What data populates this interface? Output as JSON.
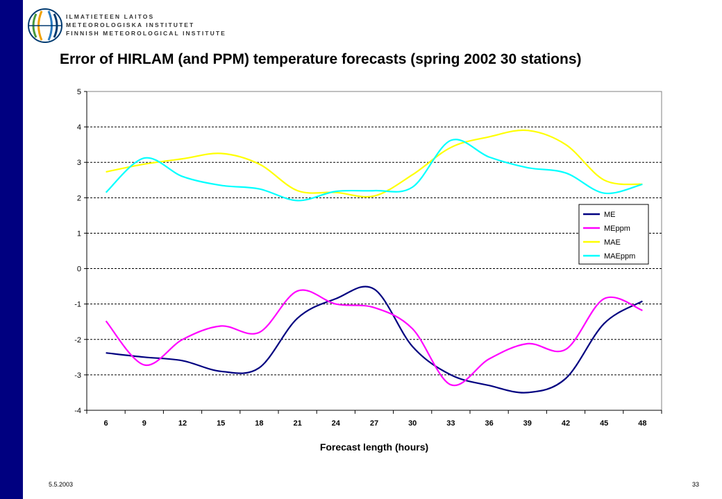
{
  "header": {
    "org_lines": [
      "ILMATIETEEN LAITOS",
      "METEOROLOGISKA INSTITUTET",
      "FINNISH METEOROLOGICAL INSTITUTE"
    ],
    "title": "Error of HIRLAM (and PPM) temperature forecasts (spring 2002 30 stations)"
  },
  "footer": {
    "date": "5.5.2003",
    "page": "33"
  },
  "colors": {
    "side_bar": "#000080"
  },
  "chart_data": {
    "type": "line",
    "title": "Error of HIRLAM (and PPM) temperature forecasts (spring 2002 30 stations)",
    "xlabel": "Forecast length (hours)",
    "ylabel": "",
    "categories": [
      "6",
      "9",
      "12",
      "15",
      "18",
      "21",
      "24",
      "27",
      "30",
      "33",
      "36",
      "39",
      "42",
      "45",
      "48"
    ],
    "ylim": [
      -4,
      5
    ],
    "yticks": [
      "5",
      "4",
      "3",
      "2",
      "1",
      "0",
      "-1",
      "-2",
      "-3",
      "-4"
    ],
    "grid": "horizontal dashed",
    "legend_position": "right",
    "series": [
      {
        "name": "ME",
        "color": "#000080",
        "values": [
          -2.38,
          -2.5,
          -2.6,
          -2.9,
          -2.8,
          -1.4,
          -0.85,
          -0.58,
          -2.2,
          -3.0,
          -3.3,
          -3.5,
          -3.1,
          -1.55,
          -0.92
        ]
      },
      {
        "name": "MEppm",
        "color": "#ff00ff",
        "values": [
          -1.48,
          -2.72,
          -2.0,
          -1.62,
          -1.8,
          -0.63,
          -1.0,
          -1.1,
          -1.7,
          -3.28,
          -2.55,
          -2.12,
          -2.28,
          -0.85,
          -1.18
        ]
      },
      {
        "name": "MAE",
        "color": "#ffff00",
        "values": [
          2.73,
          2.95,
          3.1,
          3.25,
          2.95,
          2.2,
          2.15,
          2.05,
          2.65,
          3.42,
          3.72,
          3.9,
          3.5,
          2.5,
          2.38
        ]
      },
      {
        "name": "MAEppm",
        "color": "#00ffff",
        "values": [
          2.15,
          3.12,
          2.6,
          2.35,
          2.25,
          1.92,
          2.18,
          2.2,
          2.3,
          3.62,
          3.15,
          2.85,
          2.7,
          2.13,
          2.38
        ]
      }
    ]
  }
}
